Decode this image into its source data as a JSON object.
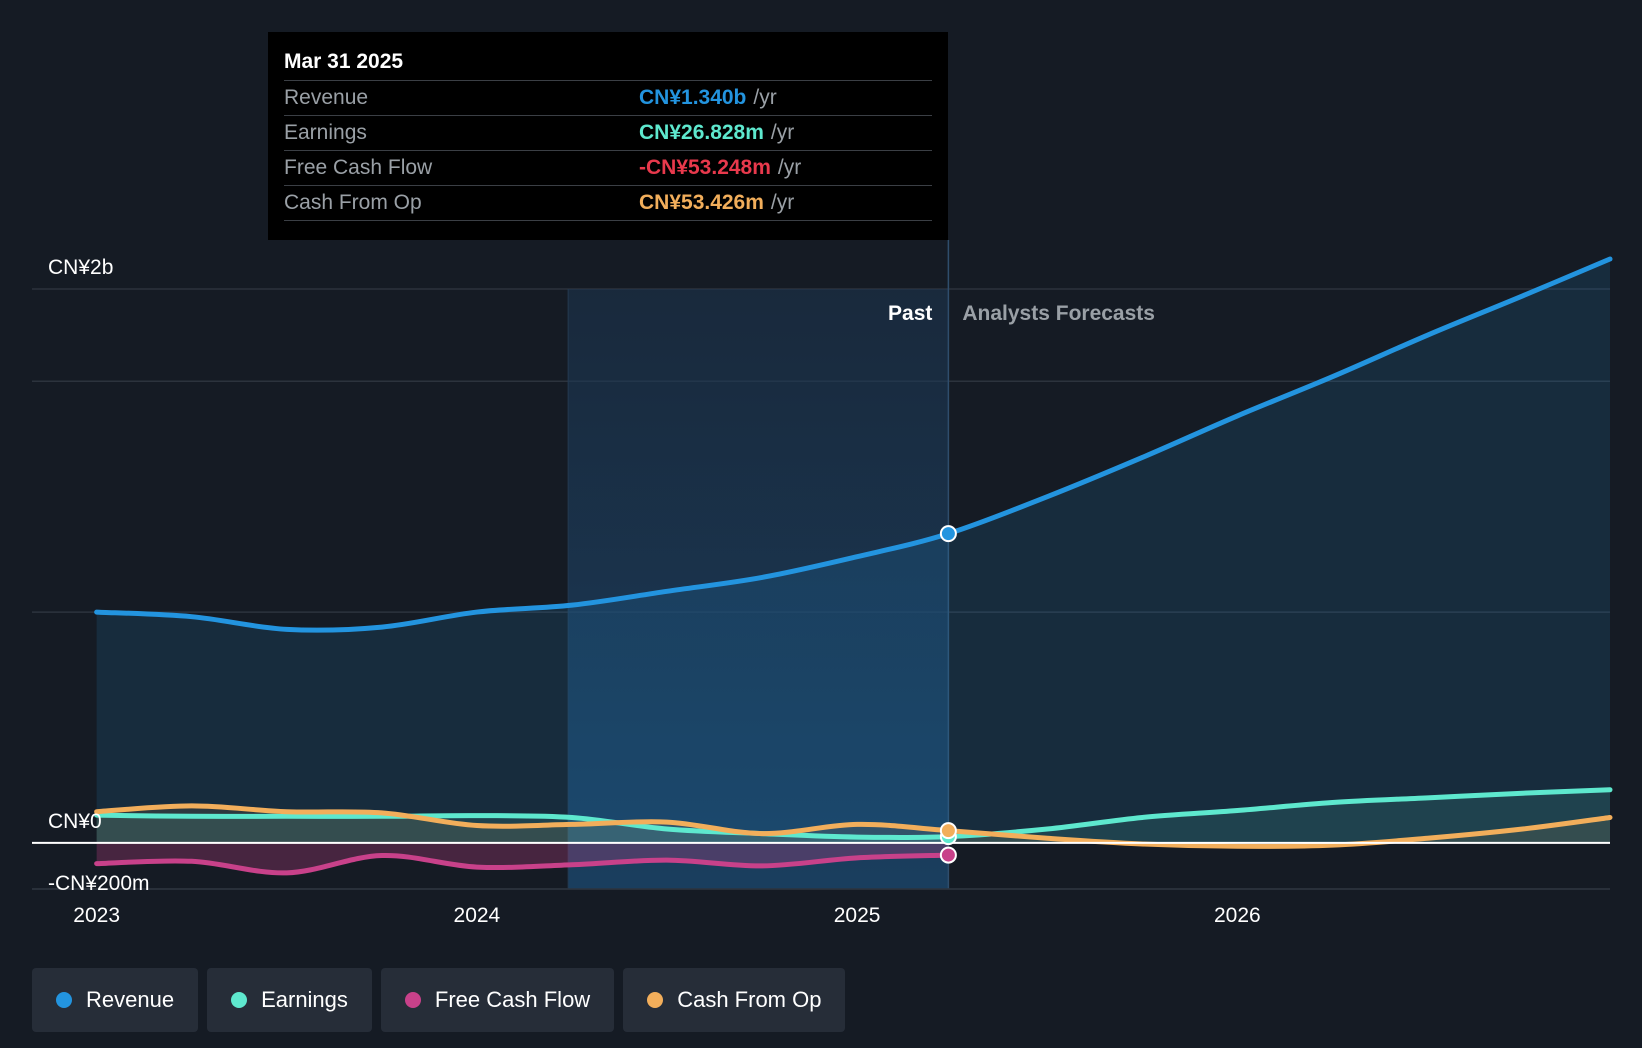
{
  "tooltip": {
    "date": "Mar 31 2025",
    "rows": [
      {
        "label": "Revenue",
        "value": "CN¥1.340b",
        "unit": "/yr",
        "color": "#2394df"
      },
      {
        "label": "Earnings",
        "value": "CN¥26.828m",
        "unit": "/yr",
        "color": "#5ee8ce"
      },
      {
        "label": "Free Cash Flow",
        "value": "-CN¥53.248m",
        "unit": "/yr",
        "color": "#e8394c"
      },
      {
        "label": "Cash From Op",
        "value": "CN¥53.426m",
        "unit": "/yr",
        "color": "#f2ae5b"
      }
    ]
  },
  "legend": [
    {
      "label": "Revenue",
      "color": "#2394df"
    },
    {
      "label": "Earnings",
      "color": "#5ee8ce"
    },
    {
      "label": "Free Cash Flow",
      "color": "#c8418a"
    },
    {
      "label": "Cash From Op",
      "color": "#f2ae5b"
    }
  ],
  "chart_data": {
    "type": "line",
    "currency": "CN¥",
    "unit": "m",
    "y_range": [
      -200,
      2400
    ],
    "y_tick_labels": [
      {
        "value": 2400,
        "label": "CN¥2b"
      },
      {
        "value": 0,
        "label": "CN¥0"
      },
      {
        "value": -200,
        "label": "-CN¥200m"
      }
    ],
    "gridlines": [
      2400,
      2000,
      1000,
      0,
      -200
    ],
    "x_range": [
      2022.83,
      2026.98
    ],
    "x_ticks": [
      {
        "value": 2023,
        "label": "2023"
      },
      {
        "value": 2024,
        "label": "2024"
      },
      {
        "value": 2025,
        "label": "2025"
      },
      {
        "value": 2026,
        "label": "2026"
      }
    ],
    "past_label": "Past",
    "forecast_label": "Analysts Forecasts",
    "past_region_start": 2024.24,
    "divider_x": 2025.24,
    "series": [
      {
        "name": "Revenue",
        "color": "#2394df",
        "fill": "#2394df",
        "points": [
          [
            2023.0,
            1000
          ],
          [
            2023.25,
            980
          ],
          [
            2023.5,
            925
          ],
          [
            2023.75,
            935
          ],
          [
            2024.0,
            1000
          ],
          [
            2024.25,
            1030
          ],
          [
            2024.5,
            1090
          ],
          [
            2024.75,
            1150
          ],
          [
            2025.0,
            1240
          ],
          [
            2025.24,
            1340
          ],
          [
            2025.5,
            1500
          ],
          [
            2025.75,
            1670
          ],
          [
            2026.0,
            1850
          ],
          [
            2026.25,
            2020
          ],
          [
            2026.5,
            2200
          ],
          [
            2026.75,
            2370
          ],
          [
            2026.98,
            2530
          ]
        ]
      },
      {
        "name": "Earnings",
        "color": "#5ee8ce",
        "fill": "#5ee8ce",
        "points": [
          [
            2023.0,
            120
          ],
          [
            2023.25,
            115
          ],
          [
            2023.5,
            115
          ],
          [
            2023.75,
            115
          ],
          [
            2024.0,
            118
          ],
          [
            2024.25,
            110
          ],
          [
            2024.5,
            60
          ],
          [
            2024.75,
            40
          ],
          [
            2025.0,
            25
          ],
          [
            2025.24,
            27
          ],
          [
            2025.5,
            60
          ],
          [
            2025.75,
            110
          ],
          [
            2026.0,
            140
          ],
          [
            2026.25,
            175
          ],
          [
            2026.5,
            195
          ],
          [
            2026.75,
            215
          ],
          [
            2026.98,
            230
          ]
        ]
      },
      {
        "name": "Free Cash Flow",
        "color": "#c8418a",
        "fill": "#c8418a",
        "points": [
          [
            2023.0,
            -90
          ],
          [
            2023.25,
            -80
          ],
          [
            2023.5,
            -130
          ],
          [
            2023.75,
            -55
          ],
          [
            2024.0,
            -105
          ],
          [
            2024.25,
            -95
          ],
          [
            2024.5,
            -75
          ],
          [
            2024.75,
            -100
          ],
          [
            2025.0,
            -65
          ],
          [
            2025.24,
            -53
          ]
        ]
      },
      {
        "name": "Cash From Op",
        "color": "#f2ae5b",
        "fill": "#f2ae5b",
        "points": [
          [
            2023.0,
            135
          ],
          [
            2023.25,
            160
          ],
          [
            2023.5,
            135
          ],
          [
            2023.75,
            130
          ],
          [
            2024.0,
            75
          ],
          [
            2024.25,
            80
          ],
          [
            2024.5,
            90
          ],
          [
            2024.75,
            40
          ],
          [
            2025.0,
            80
          ],
          [
            2025.24,
            53
          ],
          [
            2025.5,
            20
          ],
          [
            2025.75,
            -5
          ],
          [
            2026.0,
            -15
          ],
          [
            2026.25,
            -10
          ],
          [
            2026.5,
            20
          ],
          [
            2026.75,
            60
          ],
          [
            2026.98,
            110
          ]
        ]
      }
    ],
    "highlight_x": 2025.24
  }
}
